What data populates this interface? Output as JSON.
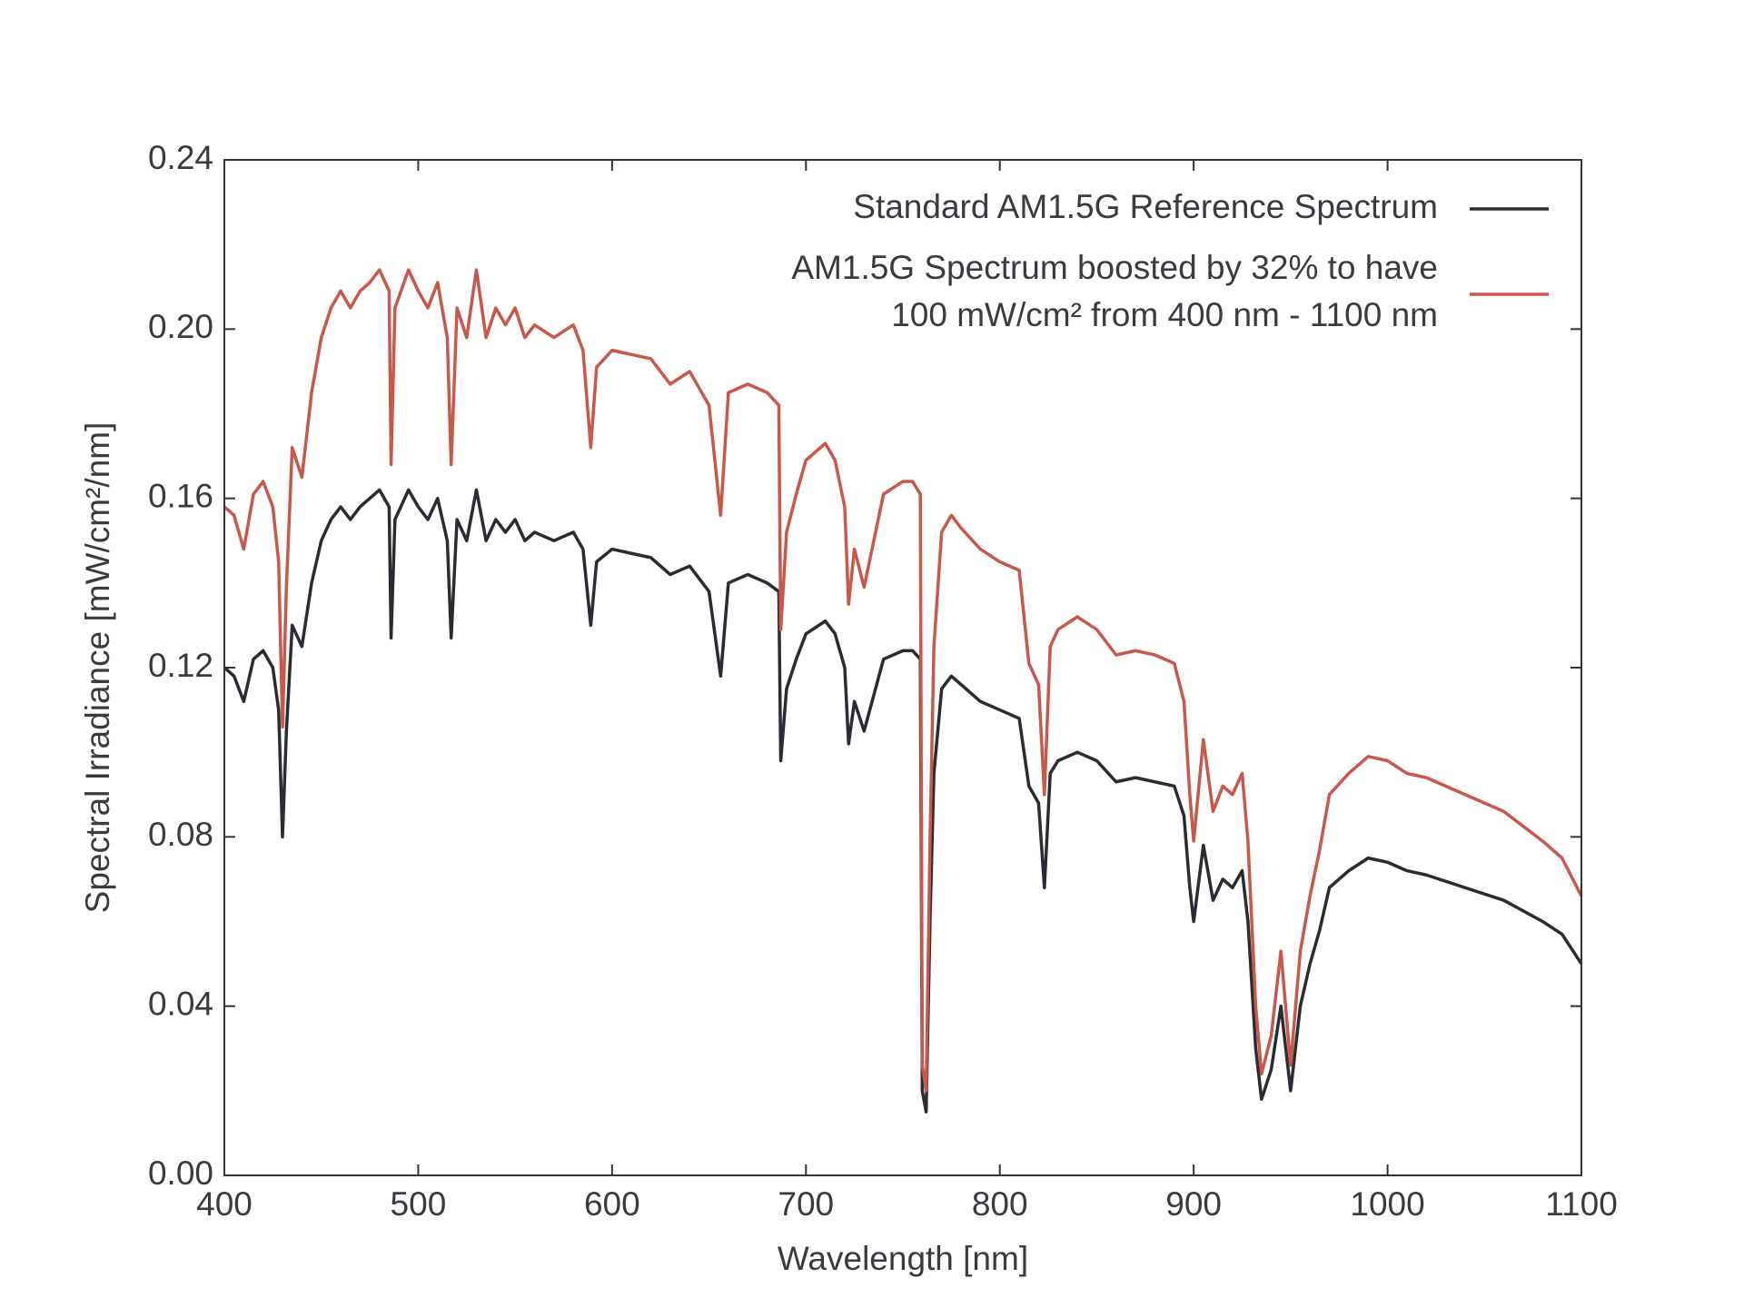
{
  "chart_data": {
    "type": "line",
    "xlabel": "Wavelength [nm]",
    "ylabel": "Spectral Irradiance [mW/cm²/nm]",
    "x": [
      400,
      405,
      410,
      415,
      420,
      425,
      428,
      430,
      432,
      435,
      440,
      445,
      450,
      455,
      460,
      465,
      470,
      475,
      480,
      485,
      486,
      488,
      495,
      500,
      505,
      510,
      515,
      517,
      520,
      525,
      530,
      535,
      540,
      545,
      550,
      555,
      560,
      570,
      580,
      585,
      589,
      592,
      600,
      610,
      620,
      630,
      640,
      650,
      656,
      660,
      670,
      680,
      686,
      687,
      690,
      695,
      700,
      710,
      715,
      720,
      722,
      725,
      730,
      740,
      750,
      755,
      759,
      760,
      762,
      764,
      766,
      770,
      775,
      780,
      790,
      800,
      810,
      815,
      820,
      823,
      826,
      830,
      840,
      850,
      860,
      870,
      880,
      890,
      895,
      898,
      900,
      905,
      910,
      915,
      920,
      925,
      928,
      932,
      935,
      940,
      945,
      950,
      955,
      960,
      965,
      970,
      980,
      990,
      1000,
      1010,
      1020,
      1040,
      1060,
      1080,
      1090,
      1100
    ],
    "series": [
      {
        "name": "Standard AM1.5G Reference Spectrum",
        "color": "#2b2b33",
        "values": [
          0.12,
          0.118,
          0.112,
          0.122,
          0.124,
          0.12,
          0.11,
          0.08,
          0.105,
          0.13,
          0.125,
          0.14,
          0.15,
          0.155,
          0.158,
          0.155,
          0.158,
          0.16,
          0.162,
          0.158,
          0.127,
          0.155,
          0.162,
          0.158,
          0.155,
          0.16,
          0.15,
          0.127,
          0.155,
          0.15,
          0.162,
          0.15,
          0.155,
          0.152,
          0.155,
          0.15,
          0.152,
          0.15,
          0.152,
          0.148,
          0.13,
          0.145,
          0.148,
          0.147,
          0.146,
          0.142,
          0.144,
          0.138,
          0.118,
          0.14,
          0.142,
          0.14,
          0.138,
          0.098,
          0.115,
          0.122,
          0.128,
          0.131,
          0.128,
          0.12,
          0.102,
          0.112,
          0.105,
          0.122,
          0.124,
          0.124,
          0.122,
          0.02,
          0.015,
          0.06,
          0.095,
          0.115,
          0.118,
          0.116,
          0.112,
          0.11,
          0.108,
          0.092,
          0.088,
          0.068,
          0.095,
          0.098,
          0.1,
          0.098,
          0.093,
          0.094,
          0.093,
          0.092,
          0.085,
          0.068,
          0.06,
          0.078,
          0.065,
          0.07,
          0.068,
          0.072,
          0.06,
          0.03,
          0.018,
          0.025,
          0.04,
          0.02,
          0.04,
          0.05,
          0.058,
          0.068,
          0.072,
          0.075,
          0.074,
          0.072,
          0.071,
          0.068,
          0.065,
          0.06,
          0.057,
          0.05
        ]
      },
      {
        "name": "AM1.5G Spectrum boosted by 32% to have\n100 mW/cm² from 400 nm - 1100 nm",
        "color": "#c9574a",
        "values": [
          0.158,
          0.156,
          0.148,
          0.161,
          0.164,
          0.158,
          0.145,
          0.106,
          0.139,
          0.172,
          0.165,
          0.185,
          0.198,
          0.205,
          0.209,
          0.205,
          0.209,
          0.211,
          0.214,
          0.209,
          0.168,
          0.205,
          0.214,
          0.209,
          0.205,
          0.211,
          0.198,
          0.168,
          0.205,
          0.198,
          0.214,
          0.198,
          0.205,
          0.201,
          0.205,
          0.198,
          0.201,
          0.198,
          0.201,
          0.195,
          0.172,
          0.191,
          0.195,
          0.194,
          0.193,
          0.187,
          0.19,
          0.182,
          0.156,
          0.185,
          0.187,
          0.185,
          0.182,
          0.129,
          0.152,
          0.161,
          0.169,
          0.173,
          0.169,
          0.158,
          0.135,
          0.148,
          0.139,
          0.161,
          0.164,
          0.164,
          0.161,
          0.026,
          0.02,
          0.079,
          0.125,
          0.152,
          0.156,
          0.153,
          0.148,
          0.145,
          0.143,
          0.121,
          0.116,
          0.09,
          0.125,
          0.129,
          0.132,
          0.129,
          0.123,
          0.124,
          0.123,
          0.121,
          0.112,
          0.09,
          0.079,
          0.103,
          0.086,
          0.092,
          0.09,
          0.095,
          0.079,
          0.04,
          0.024,
          0.033,
          0.053,
          0.026,
          0.053,
          0.066,
          0.077,
          0.09,
          0.095,
          0.099,
          0.098,
          0.095,
          0.094,
          0.09,
          0.086,
          0.079,
          0.075,
          0.066
        ]
      }
    ],
    "xlim": [
      400,
      1100
    ],
    "xticks": [
      400,
      500,
      600,
      700,
      800,
      900,
      1000,
      1100
    ],
    "ylim": [
      0,
      0.24
    ],
    "yticks": [
      {
        "value": 0,
        "label": "0.00"
      },
      0.04,
      0.08,
      0.12,
      0.16,
      {
        "value": 0.2,
        "label": "0.20"
      },
      0.24
    ],
    "legend": "upper right"
  }
}
